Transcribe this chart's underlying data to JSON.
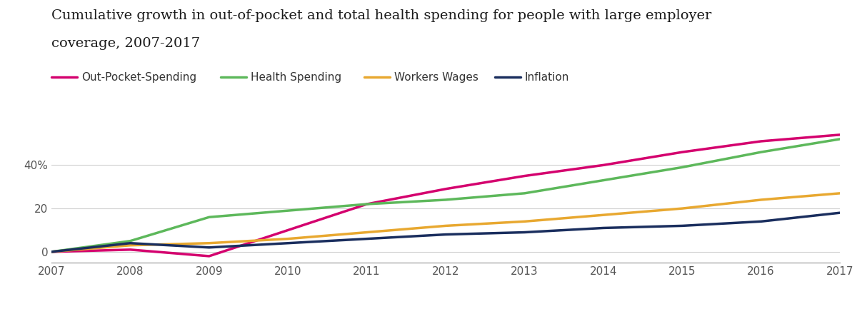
{
  "title_line1": "Cumulative growth in out-of-pocket and total health spending for people with large employer",
  "title_line2": "coverage, 2007-2017",
  "years": [
    2007,
    2008,
    2009,
    2010,
    2011,
    2012,
    2013,
    2014,
    2015,
    2016,
    2017
  ],
  "series": [
    {
      "label": "Out-Pocket-Spending",
      "values": [
        0,
        1,
        -2,
        10,
        22,
        29,
        35,
        40,
        46,
        51,
        54
      ],
      "color": "#d4006e",
      "linewidth": 2.5
    },
    {
      "label": "Health Spending",
      "values": [
        0,
        5,
        16,
        19,
        22,
        24,
        27,
        33,
        39,
        46,
        52
      ],
      "color": "#5db85b",
      "linewidth": 2.5
    },
    {
      "label": "Workers Wages",
      "values": [
        0,
        3,
        4,
        6,
        9,
        12,
        14,
        17,
        20,
        24,
        27
      ],
      "color": "#e8a830",
      "linewidth": 2.5
    },
    {
      "label": "Inflation",
      "values": [
        0,
        4,
        2,
        4,
        6,
        8,
        9,
        11,
        12,
        14,
        18
      ],
      "color": "#1a2e5e",
      "linewidth": 2.5
    }
  ],
  "ylim": [
    -5,
    62
  ],
  "yticks": [
    0,
    20,
    40
  ],
  "ytick_labels": [
    "0",
    "20",
    "40%"
  ],
  "xlim": [
    2007,
    2017
  ],
  "xticks": [
    2007,
    2008,
    2009,
    2010,
    2011,
    2012,
    2013,
    2014,
    2015,
    2016,
    2017
  ],
  "background_color": "#ffffff",
  "grid_color": "#d0d0d0",
  "title_fontsize": 14,
  "legend_fontsize": 11,
  "tick_fontsize": 11,
  "tick_color": "#555555"
}
